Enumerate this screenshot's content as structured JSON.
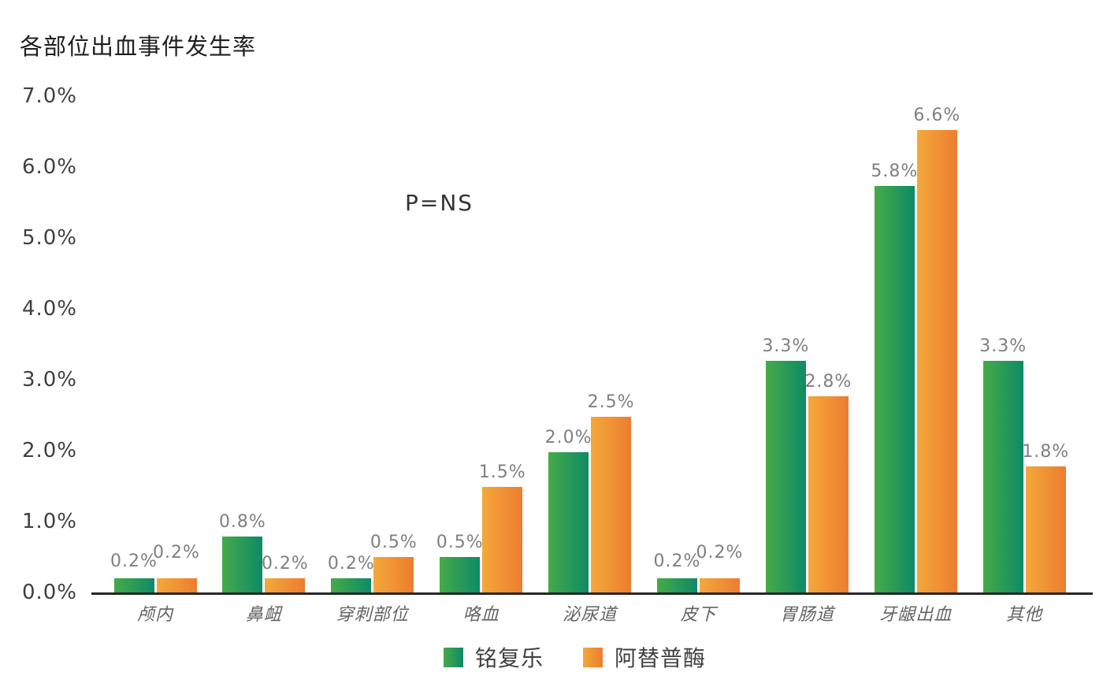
{
  "title": "各部位出血事件发生率",
  "annotation": "P=NS",
  "chart_data": {
    "type": "bar",
    "title": "各部位出血事件发生率",
    "categories": [
      "颅内",
      "鼻衄",
      "穿刺部位",
      "咯血",
      "泌尿道",
      "皮下",
      "胃肠道",
      "牙龈出血",
      "其他"
    ],
    "series": [
      {
        "name": "铭复乐",
        "values": [
          0.2,
          0.8,
          0.2,
          0.5,
          2.0,
          0.2,
          3.3,
          5.8,
          3.3
        ],
        "labels": [
          "0.2%",
          "0.8%",
          "0.2%",
          "0.5%",
          "2.0%",
          "0.2%",
          "3.3%",
          "5.8%",
          "3.3%"
        ],
        "color_start": "#46AA47",
        "color_end": "#0E8A67"
      },
      {
        "name": "阿替普酶",
        "values": [
          0.2,
          0.2,
          0.5,
          1.5,
          2.5,
          0.2,
          2.8,
          6.6,
          1.8
        ],
        "labels": [
          "0.2%",
          "0.2%",
          "0.5%",
          "1.5%",
          "2.5%",
          "0.2%",
          "2.8%",
          "6.6%",
          "1.8%"
        ],
        "color_start": "#F4A83B",
        "color_end": "#EC7D2F"
      }
    ],
    "xlabel": "",
    "ylabel": "",
    "ylim": [
      0,
      7
    ],
    "yticks": [
      "0.0%",
      "1.0%",
      "2.0%",
      "3.0%",
      "4.0%",
      "5.0%",
      "6.0%",
      "7.0%"
    ],
    "grid": false,
    "legend_position": "bottom",
    "annotation": "P=NS"
  },
  "colors": {
    "axis": "#262626",
    "value_label": "#7F7F7F",
    "category_label": "#636363",
    "tick_label": "#3F3F3F",
    "title": "#1F1F1F",
    "background": "#FFFFFF"
  }
}
